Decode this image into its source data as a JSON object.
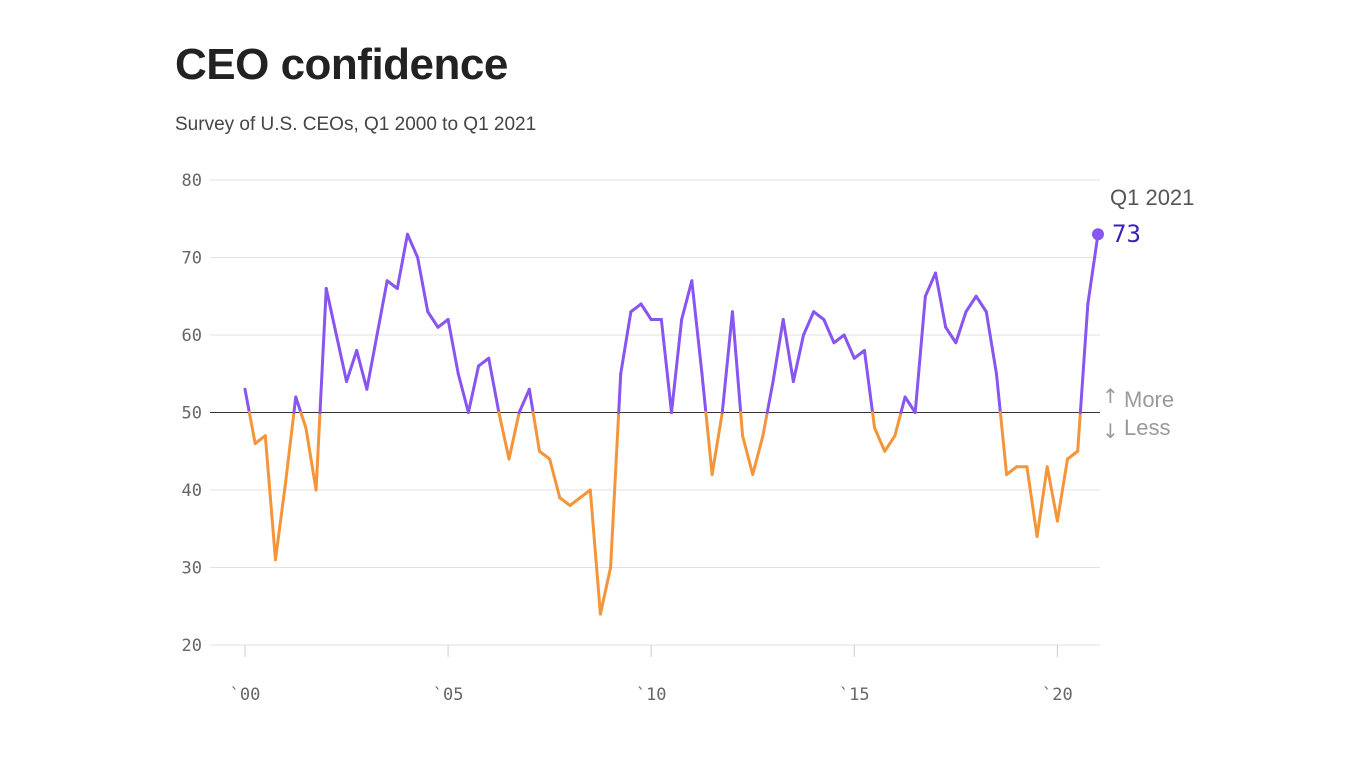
{
  "page": {
    "title": "CEO confidence",
    "subtitle": "Survey of U.S. CEOs, Q1 2000 to Q1 2021"
  },
  "chart_data": {
    "type": "line",
    "title": "CEO confidence",
    "subtitle": "Survey of U.S. CEOs, Q1 2000 to Q1 2021",
    "x_unit": "year (quarterly, Q1 2000 to Q1 2021)",
    "x": [
      2000.0,
      2000.25,
      2000.5,
      2000.75,
      2001.0,
      2001.25,
      2001.5,
      2001.75,
      2002.0,
      2002.25,
      2002.5,
      2002.75,
      2003.0,
      2003.25,
      2003.5,
      2003.75,
      2004.0,
      2004.25,
      2004.5,
      2004.75,
      2005.0,
      2005.25,
      2005.5,
      2005.75,
      2006.0,
      2006.25,
      2006.5,
      2006.75,
      2007.0,
      2007.25,
      2007.5,
      2007.75,
      2008.0,
      2008.25,
      2008.5,
      2008.75,
      2009.0,
      2009.25,
      2009.5,
      2009.75,
      2010.0,
      2010.25,
      2010.5,
      2010.75,
      2011.0,
      2011.25,
      2011.5,
      2011.75,
      2012.0,
      2012.25,
      2012.5,
      2012.75,
      2013.0,
      2013.25,
      2013.5,
      2013.75,
      2014.0,
      2014.25,
      2014.5,
      2014.75,
      2015.0,
      2015.25,
      2015.5,
      2015.75,
      2016.0,
      2016.25,
      2016.5,
      2016.75,
      2017.0,
      2017.25,
      2017.5,
      2017.75,
      2018.0,
      2018.25,
      2018.5,
      2018.75,
      2019.0,
      2019.25,
      2019.5,
      2019.75,
      2020.0,
      2020.25,
      2020.5,
      2020.75,
      2021.0
    ],
    "series": [
      {
        "values": [
          53,
          46,
          47,
          31,
          41,
          52,
          48,
          40,
          66,
          60,
          54,
          58,
          53,
          60,
          67,
          66,
          73,
          70,
          63,
          61,
          62,
          55,
          50,
          56,
          57,
          50,
          44,
          50,
          53,
          45,
          44,
          39,
          38,
          39,
          40,
          24,
          30,
          55,
          63,
          64,
          62,
          62,
          50,
          62,
          67,
          55,
          42,
          50,
          63,
          47,
          42,
          47,
          54,
          62,
          54,
          60,
          63,
          62,
          59,
          60,
          57,
          58,
          48,
          45,
          47,
          52,
          50,
          65,
          68,
          61,
          59,
          63,
          65,
          63,
          55,
          42,
          43,
          43,
          34,
          43,
          36,
          44,
          45,
          64,
          73
        ]
      }
    ],
    "xlim": [
      2000,
      2021
    ],
    "ylim": [
      20,
      80
    ],
    "yticks": [
      80,
      70,
      60,
      50,
      40,
      30,
      20
    ],
    "xticks": [
      {
        "value": 2000,
        "label": "`00"
      },
      {
        "value": 2005,
        "label": "`05"
      },
      {
        "value": 2010,
        "label": "`10"
      },
      {
        "value": 2015,
        "label": "`15"
      },
      {
        "value": 2020,
        "label": "`20"
      }
    ],
    "threshold": 50,
    "colors": {
      "above": "#8855f0",
      "below": "#f5953a",
      "grid": "#e2e2e2",
      "threshold_line": "#333333",
      "end_value": "#3b1fb8"
    },
    "grid": true,
    "annotations": {
      "end_label": "Q1 2021",
      "end_value": "73",
      "more_label": "More",
      "less_label": "Less",
      "up_arrow": "↑",
      "down_arrow": "↓"
    }
  }
}
